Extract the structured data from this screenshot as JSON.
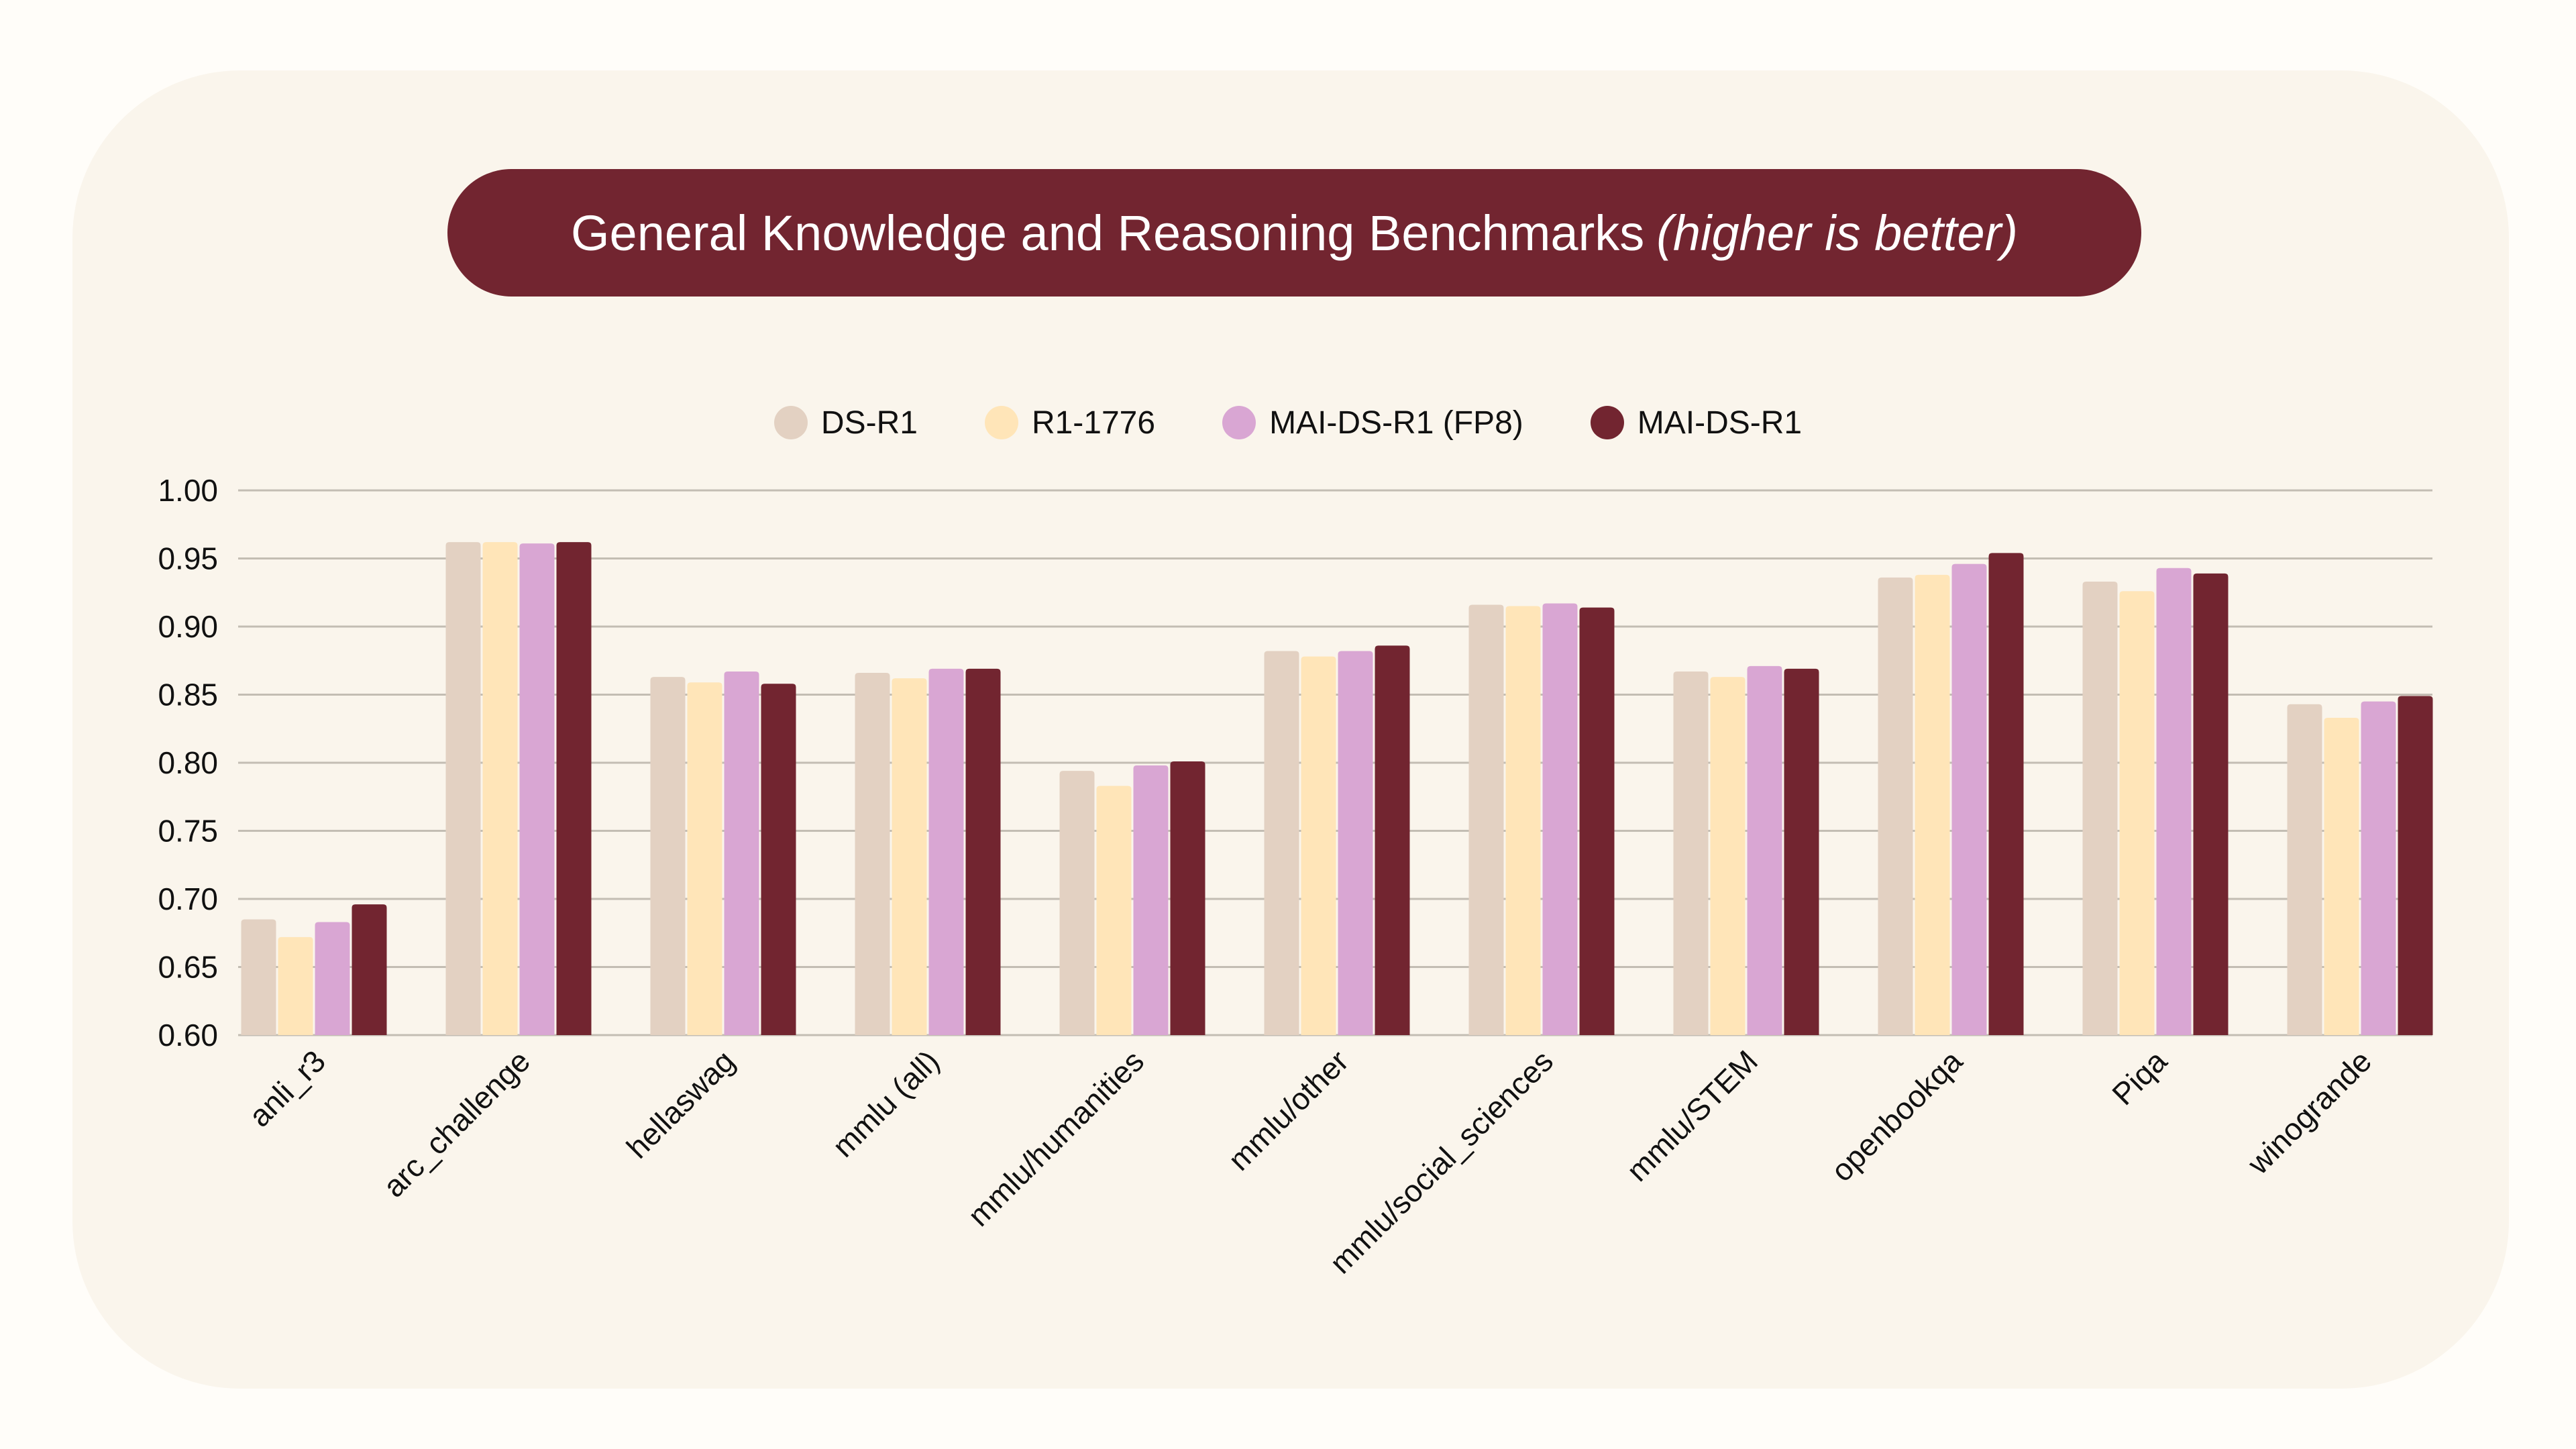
{
  "chart_data": {
    "type": "bar",
    "title": "General Knowledge and Reasoning Benchmarks",
    "title_note": "(higher is better)",
    "xlabel": "",
    "ylabel": "",
    "ylim": [
      0.6,
      1.0
    ],
    "yticks": [
      "0.60",
      "0.65",
      "0.70",
      "0.75",
      "0.80",
      "0.85",
      "0.90",
      "0.95",
      "1.00"
    ],
    "grid": true,
    "legend_position": "top",
    "categories": [
      "anli_r3",
      "arc_challenge",
      "hellaswag",
      "mmlu (all)",
      "mmlu/humanities",
      "mmlu/other",
      "mmlu/social_sciences",
      "mmlu/STEM",
      "openbookqa",
      "Piqa",
      "winogrande"
    ],
    "series": [
      {
        "name": "DS-R1",
        "color": "#e3d1c2",
        "values": [
          0.685,
          0.962,
          0.863,
          0.866,
          0.794,
          0.882,
          0.916,
          0.867,
          0.936,
          0.933,
          0.843
        ]
      },
      {
        "name": "R1-1776",
        "color": "#ffe5b8",
        "values": [
          0.672,
          0.962,
          0.859,
          0.862,
          0.783,
          0.878,
          0.915,
          0.863,
          0.938,
          0.926,
          0.833
        ]
      },
      {
        "name": "MAI-DS-R1 (FP8)",
        "color": "#d9a6d3",
        "values": [
          0.683,
          0.961,
          0.867,
          0.869,
          0.798,
          0.882,
          0.917,
          0.871,
          0.946,
          0.943,
          0.845
        ]
      },
      {
        "name": "MAI-DS-R1",
        "color": "#722530",
        "values": [
          0.696,
          0.962,
          0.858,
          0.869,
          0.801,
          0.886,
          0.914,
          0.869,
          0.954,
          0.939,
          0.849
        ]
      }
    ]
  }
}
